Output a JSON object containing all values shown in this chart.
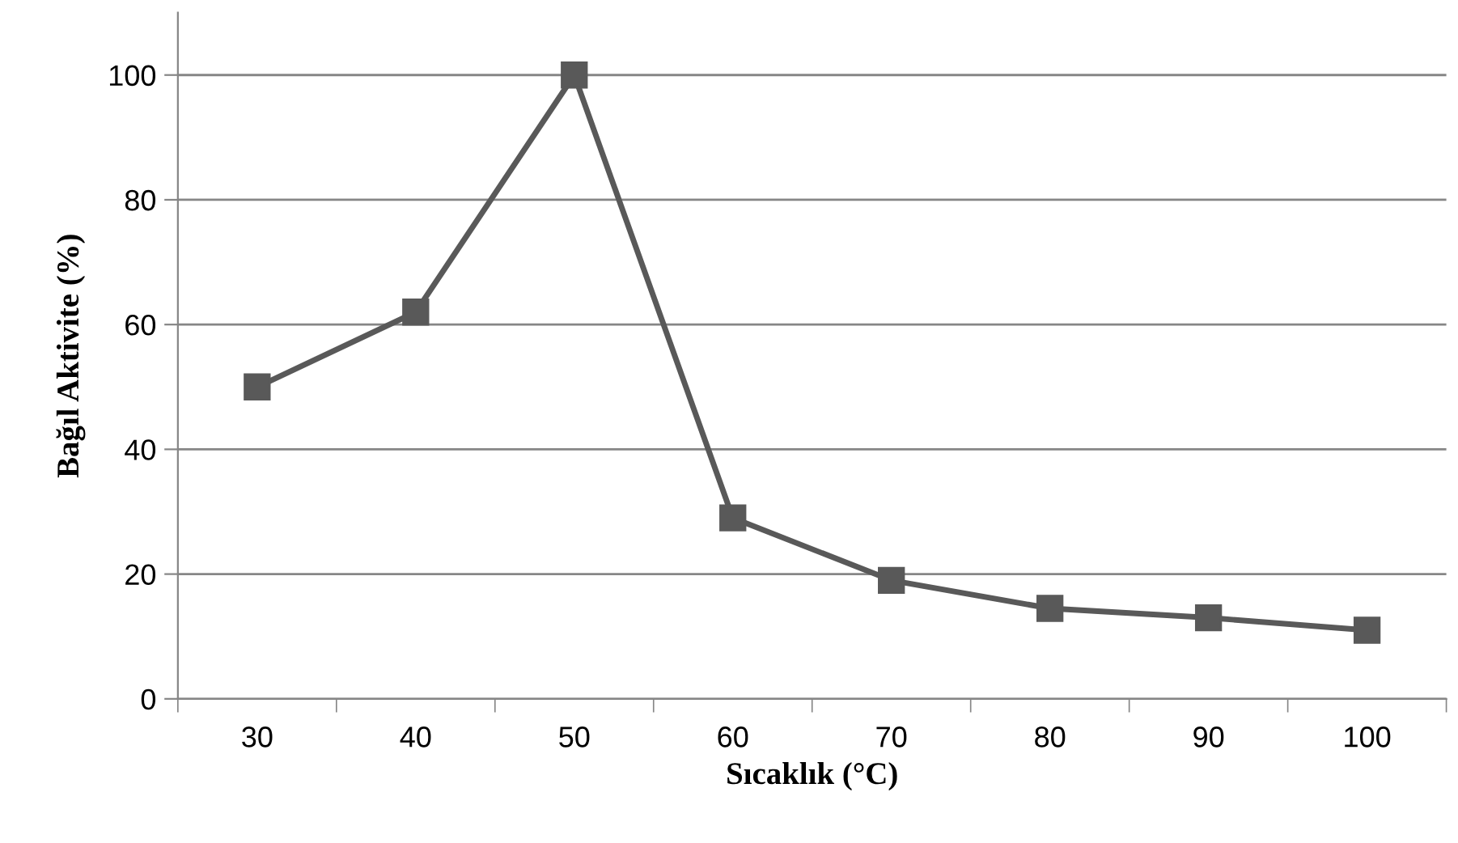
{
  "chart_data": {
    "type": "line",
    "xlabel": "Sıcaklık (°C)",
    "ylabel": "Bağıl Aktivite (%)",
    "categories": [
      "30",
      "40",
      "50",
      "60",
      "70",
      "80",
      "90",
      "100"
    ],
    "series": [
      {
        "color": "#595959",
        "values": [
          50,
          62,
          100,
          29,
          19,
          14.5,
          13,
          11
        ]
      }
    ],
    "ylim": [
      0,
      110
    ],
    "yticks": [
      0,
      20,
      40,
      60,
      80,
      100
    ],
    "grid": "y",
    "marker": "square",
    "line_style": "solid",
    "legend": false
  }
}
